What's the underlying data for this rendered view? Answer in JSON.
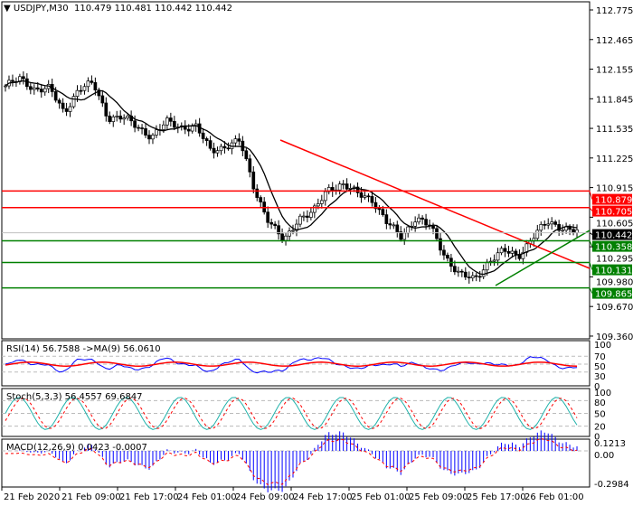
{
  "header": {
    "symbol": "USDJPY,M30",
    "ohlc": "110.479 110.481 110.442 110.442"
  },
  "chart_data": [
    {
      "type": "candlestick",
      "title": "USDJPY,M30",
      "y_ticks": [
        "112.775",
        "112.465",
        "112.155",
        "111.845",
        "111.535",
        "111.225",
        "110.915",
        "110.605",
        "110.295",
        "109.980",
        "109.670",
        "109.360"
      ],
      "ylim": [
        109.36,
        112.775
      ],
      "x_ticks": [
        "21 Feb 2020",
        "21 Feb 09:00",
        "21 Feb 17:00",
        "24 Feb 01:00",
        "24 Feb 09:00",
        "24 Feb 17:00",
        "25 Feb 01:00",
        "25 Feb 09:00",
        "25 Feb 17:00",
        "26 Feb 01:00"
      ],
      "approx_close_path": [
        111.98,
        112.05,
        111.95,
        111.95,
        111.7,
        111.95,
        112.0,
        111.65,
        111.65,
        111.55,
        111.45,
        111.6,
        111.55,
        111.55,
        111.3,
        111.35,
        111.4,
        110.9,
        110.55,
        110.35,
        110.6,
        110.65,
        110.9,
        110.95,
        110.85,
        110.8,
        110.55,
        110.4,
        110.6,
        110.5,
        110.2,
        110.0,
        109.95,
        110.15,
        110.25,
        110.2,
        110.4,
        110.55,
        110.5,
        110.45
      ],
      "horizontal_levels": [
        {
          "value": "110.879",
          "color": "#ff0000"
        },
        {
          "value": "110.705",
          "color": "#ff0000"
        },
        {
          "value": "110.442",
          "color": "#000000",
          "current": true
        },
        {
          "value": "110.358",
          "color": "#008000"
        },
        {
          "value": "110.131",
          "color": "#008000"
        },
        {
          "value": "109.865",
          "color": "#008000"
        }
      ],
      "trendlines": [
        {
          "color": "#ff0000",
          "from": [
            "24 Feb 09:00",
            111.38
          ],
          "to": [
            "26 Feb 04:00",
            110.05
          ]
        },
        {
          "color": "#008000",
          "from": [
            "25 Feb 15:00",
            109.86
          ],
          "to": [
            "26 Feb 04:00",
            110.45
          ]
        }
      ],
      "series": [
        {
          "type": "moving-average",
          "color": "#000000"
        }
      ]
    },
    {
      "type": "line",
      "label": "RSI(14) 56.7588  ->MA(9) 56.0610",
      "y_ticks": [
        "100",
        "70",
        "50",
        "30",
        "0"
      ],
      "ylim": [
        0,
        100
      ],
      "series": [
        {
          "color": "#0000ff"
        },
        {
          "color": "#ff0000"
        }
      ]
    },
    {
      "type": "line",
      "label": "Stoch(5,3,3) 56.4557 69.6847",
      "y_ticks": [
        "100",
        "80",
        "50",
        "20",
        "0"
      ],
      "ylim": [
        0,
        100
      ],
      "series": [
        {
          "color": "#20b2aa"
        },
        {
          "color": "#ff0000",
          "dashed": true
        }
      ]
    },
    {
      "type": "bar",
      "label": "MACD(12,26,9) 0.0423 -0.0007",
      "y_ticks": [
        "0.1213",
        "0.00",
        "-0.2984"
      ],
      "ylim": [
        -0.2984,
        0.1213
      ],
      "series": [
        {
          "color": "#0000ff"
        },
        {
          "color": "#ff0000",
          "dashed": true
        }
      ]
    }
  ]
}
